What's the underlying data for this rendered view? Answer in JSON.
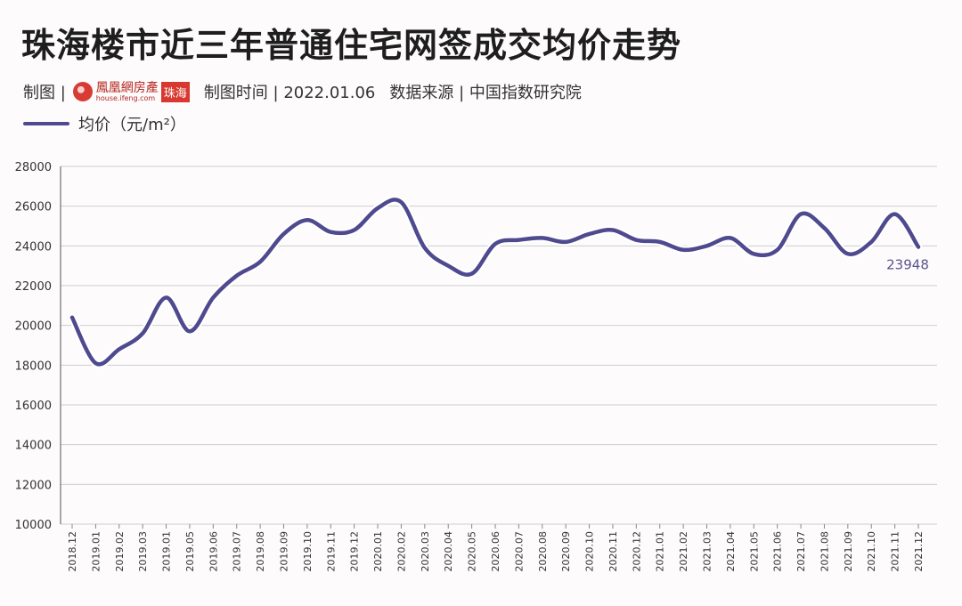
{
  "header": {
    "title": "珠海楼市近三年普通住宅网签成交均价走势",
    "credit_prefix": "制图 |",
    "logo_name": "鳳凰網房產",
    "logo_url": "house.ifeng.com",
    "logo_city": "珠海",
    "date_label": "制图时间 | 2022.01.06",
    "source_label": "数据来源 | 中国指数研究院"
  },
  "colors": {
    "line": "#4f4a8f",
    "grid": "#cfcfcf",
    "label": "#5a5490"
  },
  "chart_data": {
    "type": "line",
    "categories": [
      "2018.12",
      "2019.01",
      "2019.02",
      "2019.03",
      "2019.01",
      "2019.05",
      "2019.06",
      "2019.07",
      "2019.08",
      "2019.09",
      "2019.10",
      "2019.11",
      "2019.12",
      "2020.01",
      "2020.02",
      "2020.03",
      "2020.04",
      "2020.05",
      "2020.06",
      "2020.07",
      "2020.08",
      "2020.09",
      "2020.10",
      "2020.11",
      "2020.12",
      "2021.01",
      "2021.02",
      "2021.03",
      "2021.04",
      "2021.05",
      "2021.06",
      "2021.07",
      "2021.08",
      "2021.09",
      "2021.10",
      "2021.11",
      "2021.12"
    ],
    "series": [
      {
        "name": "均价（元/m²）",
        "values": [
          20400,
          18100,
          18800,
          19600,
          21400,
          19700,
          21400,
          22500,
          23200,
          24600,
          25300,
          24700,
          24800,
          25900,
          26200,
          23900,
          23000,
          22600,
          24100,
          24300,
          24400,
          24200,
          24600,
          24800,
          24300,
          24200,
          23800,
          24000,
          24400,
          23600,
          23800,
          25600,
          24900,
          23600,
          24200,
          25600,
          23948
        ]
      }
    ],
    "end_label": "23948",
    "ylim": [
      10000,
      28000
    ],
    "yticks": [
      10000,
      12000,
      14000,
      16000,
      18000,
      20000,
      22000,
      24000,
      26000,
      28000
    ],
    "grid": "horizontal",
    "legend": "top-left"
  }
}
